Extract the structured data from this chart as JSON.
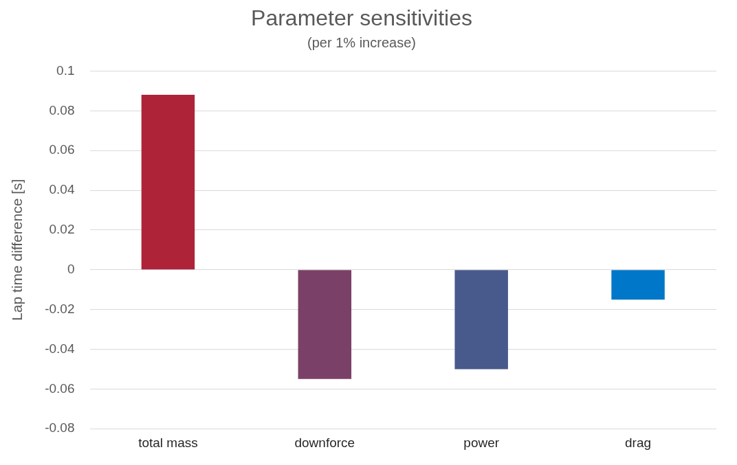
{
  "chart_data": {
    "type": "bar",
    "title": "Parameter sensitivities",
    "subtitle": "(per 1% increase)",
    "ylabel": "Lap time difference [s]",
    "categories": [
      "total mass",
      "downforce",
      "power",
      "drag"
    ],
    "values": [
      0.088,
      -0.055,
      -0.05,
      -0.015
    ],
    "colors": [
      "#ae2338",
      "#7b4067",
      "#485a8b",
      "#0077c8"
    ],
    "ylim": [
      -0.08,
      0.1
    ],
    "yticks": [
      -0.08,
      -0.06,
      -0.04,
      -0.02,
      0,
      0.02,
      0.04,
      0.06,
      0.08,
      0.1
    ],
    "grid": "y",
    "legend": false
  }
}
